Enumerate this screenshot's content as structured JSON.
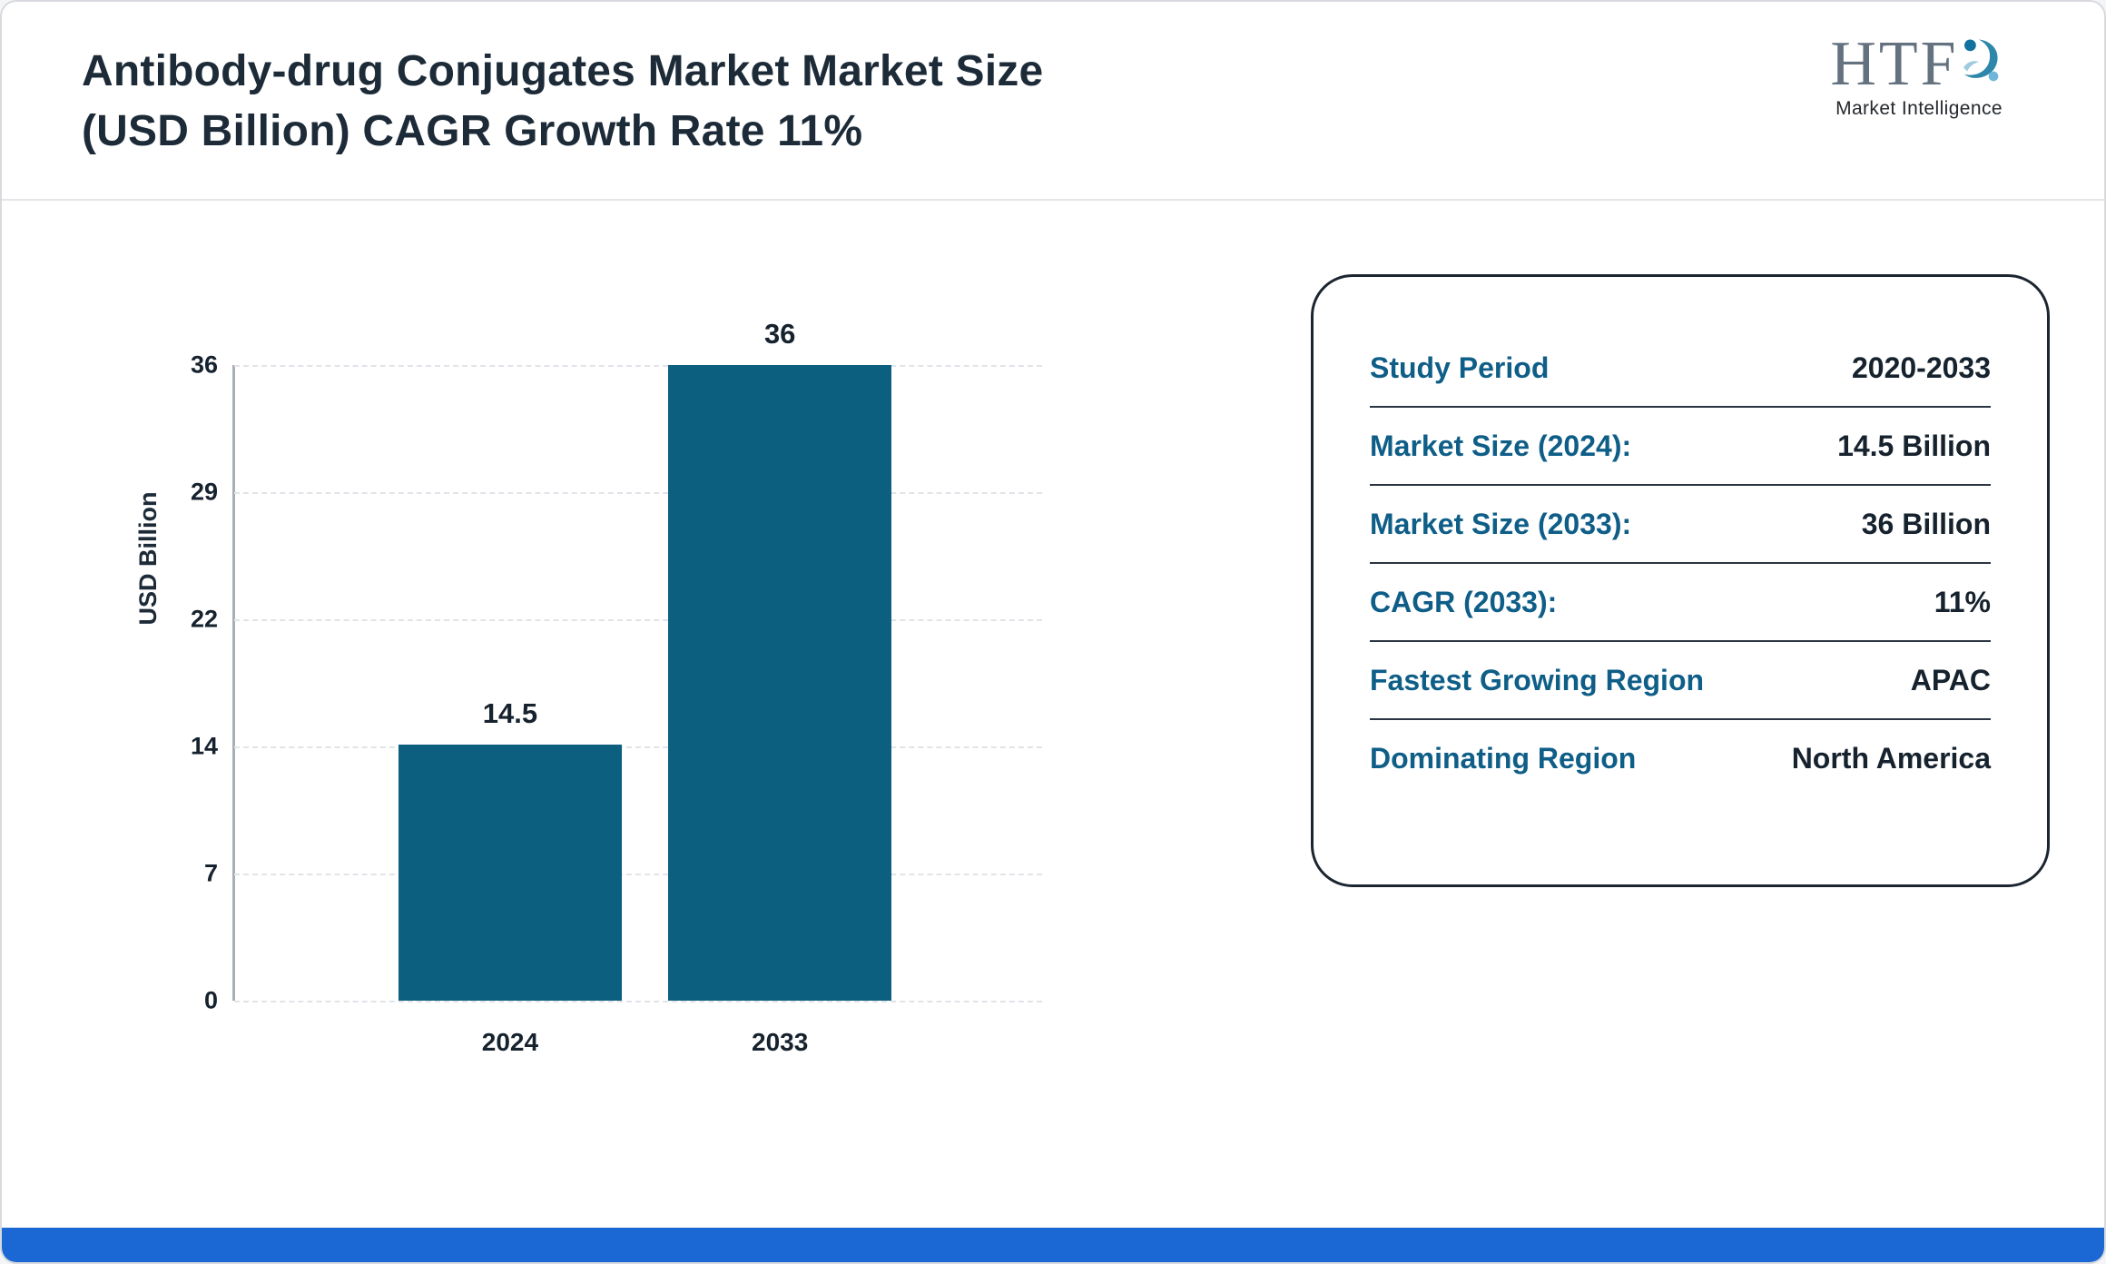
{
  "header": {
    "title": "Antibody-drug Conjugates Market Market Size\n(USD Billion) CAGR Growth Rate 11%",
    "logo_text": "HTF",
    "logo_subtext": "Market Intelligence"
  },
  "chart_data": {
    "type": "bar",
    "title": "Antibody-drug Conjugates Market Market Size (USD Billion) CAGR Growth Rate 11%",
    "categories": [
      "2024",
      "2033"
    ],
    "values": [
      14.5,
      36
    ],
    "value_labels": [
      "14.5",
      "36"
    ],
    "xlabel": "",
    "ylabel": "USD Billion",
    "yticks": [
      "0",
      "7",
      "14",
      "22",
      "29",
      "36"
    ],
    "ylim": [
      0,
      36
    ],
    "grid": "horizontal dashed",
    "legend": "none",
    "bar_color": "#0d5f80"
  },
  "info_panel": {
    "rows": [
      {
        "label": "Study Period",
        "value": "2020-2033"
      },
      {
        "label": "Market Size (2024):",
        "value": "14.5 Billion"
      },
      {
        "label": "Market Size (2033):",
        "value": "36 Billion"
      },
      {
        "label": "CAGR (2033):",
        "value": "11%"
      },
      {
        "label": "Fastest Growing Region",
        "value": "APAC"
      },
      {
        "label": "Dominating Region",
        "value": "North America"
      }
    ]
  },
  "colors": {
    "bar": "#0d5f80",
    "panel_label": "#0f5e88",
    "dark_text": "#16222e",
    "title_text": "#1d2b38",
    "bottom_strip": "#1b67d3",
    "logo_teal": "#2e86ab"
  }
}
